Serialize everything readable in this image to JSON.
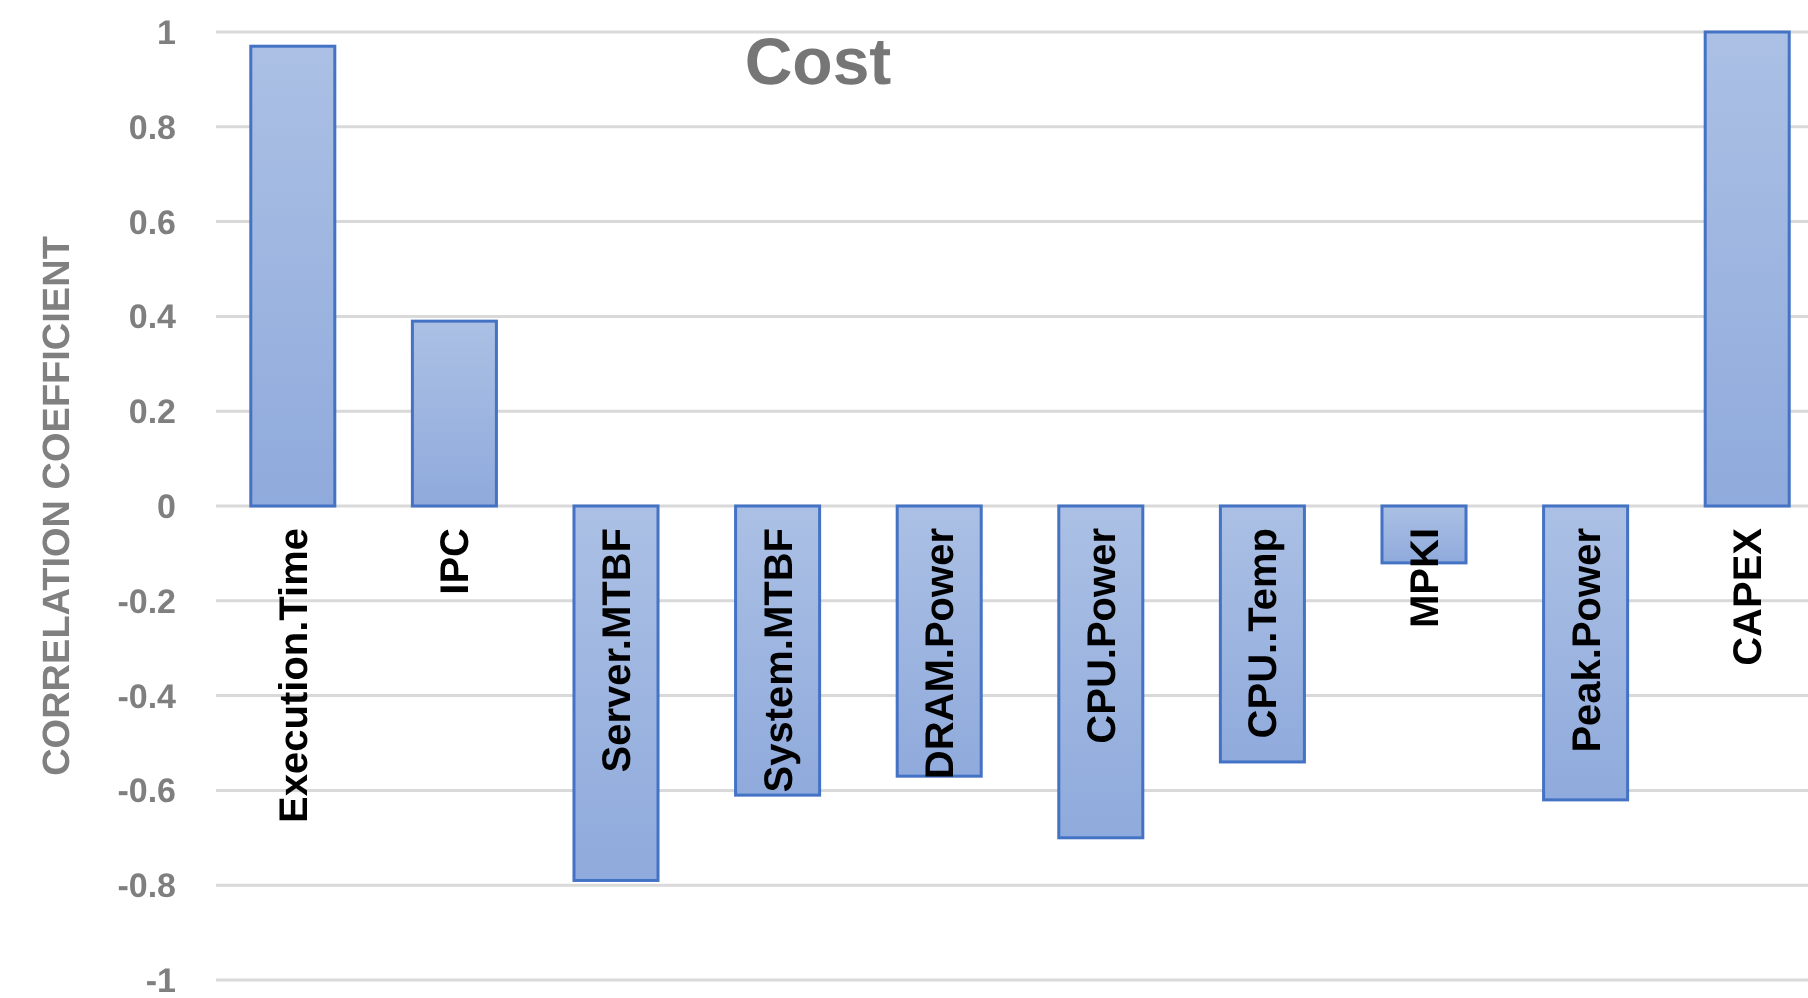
{
  "chart_data": {
    "type": "bar",
    "title": "Cost",
    "ylabel": "CORRELATION COEFFICIENT",
    "categories": [
      "Execution.Time",
      "IPC",
      "Server.MTBF",
      "System.MTBF",
      "DRAM.Power",
      "CPU.Power",
      "CPU..Temp",
      "MPKI",
      "Peak.Power",
      "CAPEX"
    ],
    "values": [
      0.97,
      0.39,
      -0.79,
      -0.61,
      -0.57,
      -0.7,
      -0.54,
      -0.12,
      -0.62,
      1.0
    ],
    "color": "#4472c4",
    "ylim": [
      -1,
      1
    ],
    "yticks": [
      -1,
      -0.8,
      -0.6,
      -0.4,
      -0.2,
      0,
      0.2,
      0.4,
      0.6,
      0.8,
      1
    ],
    "grid": "y"
  }
}
